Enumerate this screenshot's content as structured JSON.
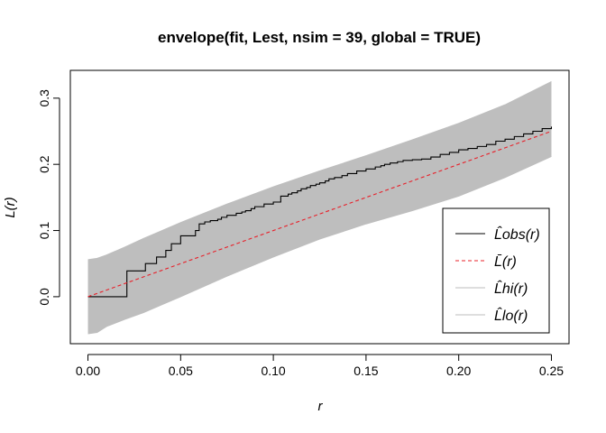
{
  "chart_data": {
    "type": "line",
    "title": "envelope(fit, Lest, nsim = 39, global = TRUE)",
    "xlabel": "r",
    "ylabel": "L(r)",
    "xlim": [
      -0.0095,
      0.2595
    ],
    "ylim": [
      -0.071,
      0.342
    ],
    "x_ticks": [
      {
        "value": 0.0,
        "label": "0.00"
      },
      {
        "value": 0.05,
        "label": "0.05"
      },
      {
        "value": 0.1,
        "label": "0.10"
      },
      {
        "value": 0.15,
        "label": "0.15"
      },
      {
        "value": 0.2,
        "label": "0.20"
      },
      {
        "value": 0.25,
        "label": "0.25"
      }
    ],
    "y_ticks": [
      {
        "value": 0.0,
        "label": "0.0"
      },
      {
        "value": 0.1,
        "label": "0.1"
      },
      {
        "value": 0.2,
        "label": "0.2"
      },
      {
        "value": 0.3,
        "label": "0.3"
      }
    ],
    "grid": false,
    "legend_position": "bottom-right",
    "legend": [
      {
        "label": "L̂obs(r)",
        "color": "#000000",
        "dash": "solid"
      },
      {
        "label": "L̄(r)",
        "color": "#e8202a",
        "dash": "dashed"
      },
      {
        "label": "L̂hi(r)",
        "color": "#bebebe",
        "dash": "solid"
      },
      {
        "label": "L̂lo(r)",
        "color": "#bebebe",
        "dash": "solid"
      }
    ],
    "series": [
      {
        "name": "obs",
        "color": "#000000",
        "step": true,
        "x": [
          0.0,
          0.02,
          0.021,
          0.03,
          0.031,
          0.037,
          0.04,
          0.042,
          0.045,
          0.05,
          0.058,
          0.06,
          0.063,
          0.066,
          0.07,
          0.072,
          0.075,
          0.08,
          0.083,
          0.085,
          0.088,
          0.09,
          0.095,
          0.1,
          0.104,
          0.108,
          0.11,
          0.113,
          0.115,
          0.118,
          0.12,
          0.123,
          0.125,
          0.128,
          0.13,
          0.133,
          0.137,
          0.14,
          0.145,
          0.15,
          0.155,
          0.158,
          0.16,
          0.163,
          0.167,
          0.17,
          0.175,
          0.18,
          0.185,
          0.19,
          0.195,
          0.2,
          0.205,
          0.21,
          0.215,
          0.22,
          0.225,
          0.23,
          0.235,
          0.24,
          0.245,
          0.25
        ],
        "y": [
          0.0,
          0.0,
          0.039,
          0.039,
          0.05,
          0.06,
          0.06,
          0.07,
          0.08,
          0.092,
          0.1,
          0.11,
          0.113,
          0.115,
          0.117,
          0.12,
          0.123,
          0.126,
          0.128,
          0.13,
          0.133,
          0.136,
          0.14,
          0.143,
          0.152,
          0.155,
          0.157,
          0.16,
          0.163,
          0.165,
          0.168,
          0.17,
          0.172,
          0.175,
          0.178,
          0.18,
          0.183,
          0.186,
          0.19,
          0.193,
          0.196,
          0.198,
          0.2,
          0.202,
          0.204,
          0.206,
          0.207,
          0.208,
          0.211,
          0.215,
          0.218,
          0.222,
          0.224,
          0.227,
          0.23,
          0.235,
          0.238,
          0.242,
          0.246,
          0.25,
          0.254,
          0.257
        ]
      },
      {
        "name": "theo",
        "color": "#e8202a",
        "dash": "dashed",
        "x": [
          0.0,
          0.025,
          0.05,
          0.075,
          0.1,
          0.125,
          0.15,
          0.175,
          0.2,
          0.225,
          0.25
        ],
        "y": [
          0.0,
          0.025,
          0.05,
          0.075,
          0.1,
          0.125,
          0.15,
          0.175,
          0.2,
          0.225,
          0.25
        ]
      },
      {
        "name": "hi",
        "color": "#bebebe",
        "x": [
          0.0,
          0.005,
          0.01,
          0.02,
          0.03,
          0.04,
          0.05,
          0.075,
          0.1,
          0.125,
          0.15,
          0.175,
          0.2,
          0.225,
          0.25
        ],
        "y": [
          0.056,
          0.058,
          0.063,
          0.075,
          0.088,
          0.1,
          0.112,
          0.14,
          0.166,
          0.19,
          0.213,
          0.237,
          0.262,
          0.29,
          0.325
        ]
      },
      {
        "name": "lo",
        "color": "#bebebe",
        "x": [
          0.0,
          0.005,
          0.01,
          0.02,
          0.03,
          0.04,
          0.05,
          0.075,
          0.1,
          0.125,
          0.15,
          0.175,
          0.2,
          0.225,
          0.25
        ],
        "y": [
          -0.056,
          -0.054,
          -0.045,
          -0.034,
          -0.024,
          -0.012,
          0.0,
          0.031,
          0.06,
          0.087,
          0.11,
          0.13,
          0.152,
          0.18,
          0.212
        ]
      }
    ]
  }
}
